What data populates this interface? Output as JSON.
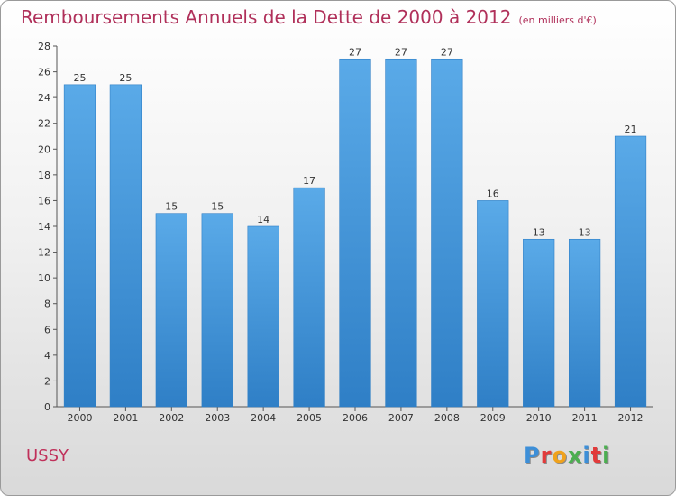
{
  "header": {
    "title": "Remboursements Annuels de la Dette de 2000 à 2012",
    "subtitle": "(en milliers d'€)"
  },
  "footer": {
    "city": "USSY",
    "logo_letters": [
      "P",
      "r",
      "o",
      "x",
      "i",
      "t",
      "i"
    ],
    "logo_colors": [
      "#3d8fd8",
      "#e23b3b",
      "#f0a21c",
      "#4caf50",
      "#3d8fd8",
      "#e23b3b",
      "#4caf50"
    ]
  },
  "chart_data": {
    "type": "bar",
    "title": "Remboursements Annuels de la Dette de 2000 à 2012",
    "categories": [
      "2000",
      "2001",
      "2002",
      "2003",
      "2004",
      "2005",
      "2006",
      "2007",
      "2008",
      "2009",
      "2010",
      "2011",
      "2012"
    ],
    "values": [
      25,
      25,
      15,
      15,
      14,
      17,
      27,
      27,
      27,
      16,
      13,
      13,
      21
    ],
    "data_labels": [
      "25",
      "25",
      "15",
      "15",
      "14",
      "17",
      "27",
      "27",
      "27",
      "16",
      "13",
      "13",
      "21"
    ],
    "ylim": [
      0,
      28
    ],
    "yticks": [
      0,
      2,
      4,
      6,
      8,
      10,
      12,
      14,
      16,
      18,
      20,
      22,
      24,
      26,
      28
    ],
    "xlabel": "",
    "ylabel": "",
    "grid": false,
    "bar_color": "#4a9de0",
    "bar_color_dark": "#2f7fc6"
  }
}
